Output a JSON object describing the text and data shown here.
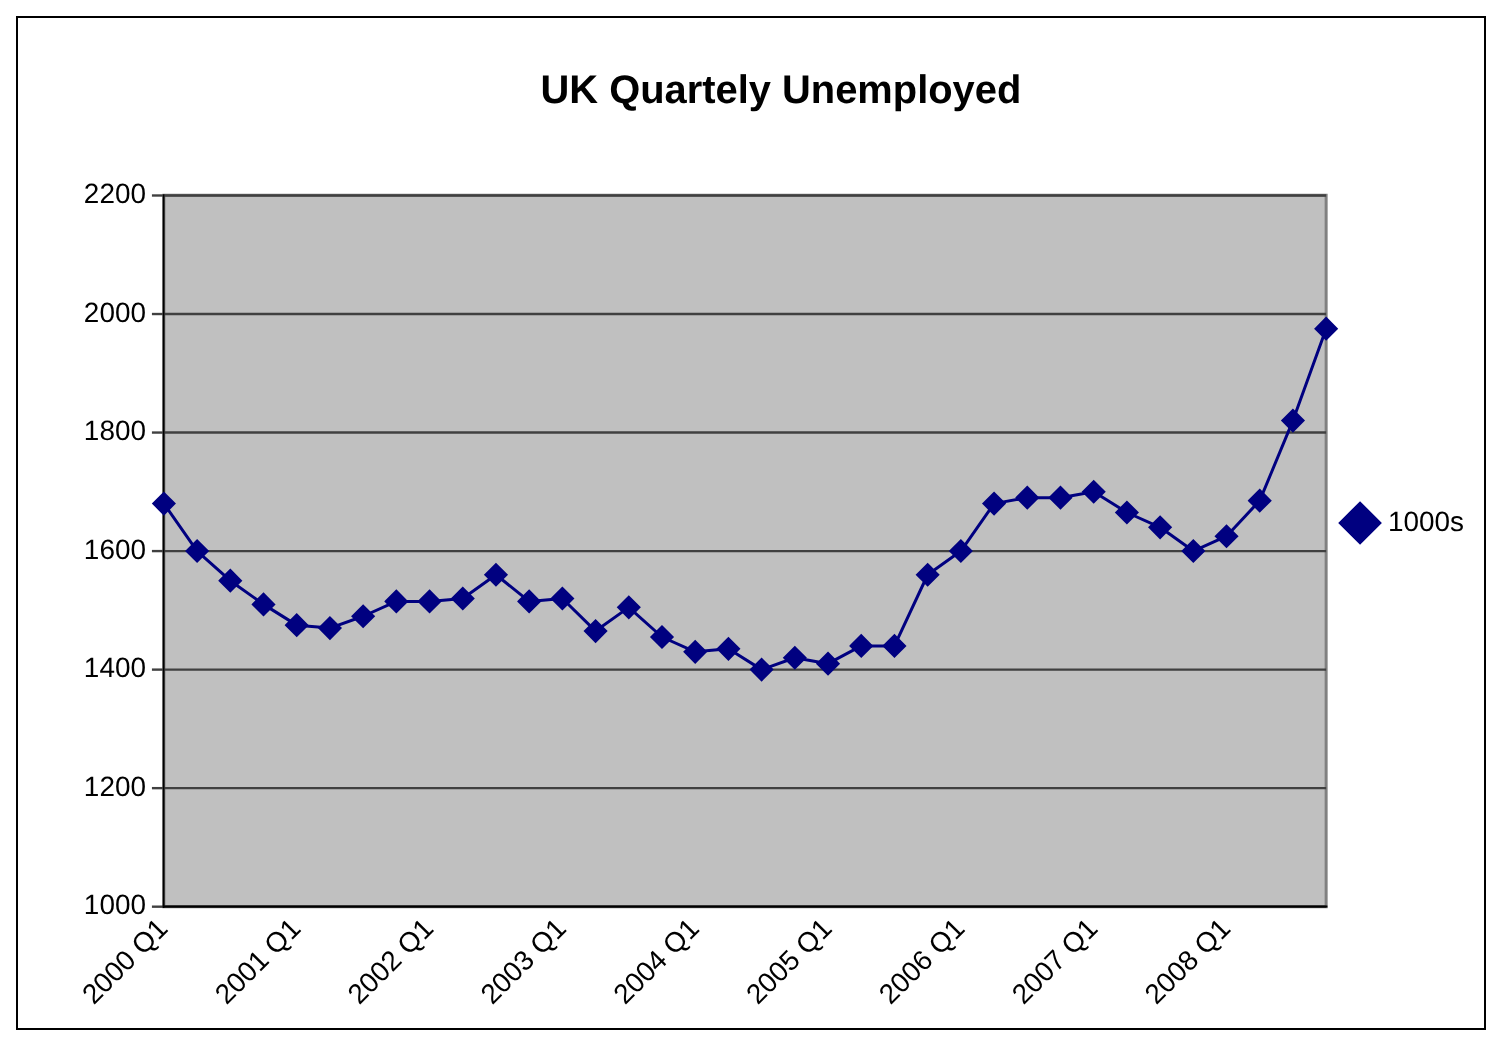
{
  "chart_data": {
    "type": "line",
    "title": "UK Quartely Unemployed",
    "categories": [
      "2000 Q1",
      null,
      null,
      null,
      "2001 Q1",
      null,
      null,
      null,
      "2002 Q1",
      null,
      null,
      null,
      "2003 Q1",
      null,
      null,
      null,
      "2004 Q1",
      null,
      null,
      null,
      "2005 Q1",
      null,
      null,
      null,
      "2006 Q1",
      null,
      null,
      null,
      "2007 Q1",
      null,
      null,
      null,
      "2008 Q1",
      null,
      null,
      null
    ],
    "series": [
      {
        "name": "1000s",
        "color": "#000080",
        "values": [
          1680,
          1600,
          1550,
          1510,
          1475,
          1470,
          1490,
          1515,
          1515,
          1520,
          1560,
          1515,
          1520,
          1465,
          1505,
          1455,
          1430,
          1435,
          1400,
          1420,
          1410,
          1440,
          1440,
          1560,
          1600,
          1680,
          1690,
          1690,
          1700,
          1665,
          1640,
          1600,
          1625,
          1685,
          1820,
          1975
        ]
      }
    ],
    "ylim": [
      1000,
      2200
    ],
    "yticks": [
      1000,
      1200,
      1400,
      1600,
      1800,
      2000,
      2200
    ],
    "grid": "y",
    "legend": "right",
    "marker": "diamond",
    "line_style": "solid"
  }
}
